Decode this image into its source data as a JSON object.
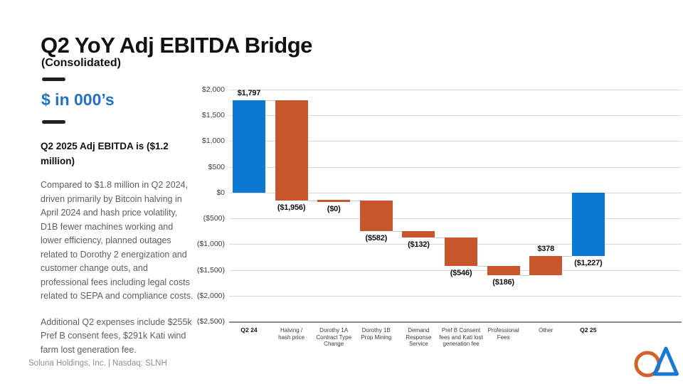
{
  "slide": {
    "title": "Q2 YoY Adj EBITDA Bridge",
    "subtitle": "(Consolidated)",
    "units_label": "$ in 000’s",
    "callout_heading": "Q2 2025 Adj EBITDA is ($1.2 million)",
    "body_paragraph_1": "Compared to $1.8 million in Q2 2024, driven primarily by Bitcoin halving in April 2024 and hash price volatility, D1B fewer machines working and lower efficiency, planned outages related to Dorothy 2 energization and customer change outs, and professional fees including legal costs related to SEPA and compliance costs.",
    "body_paragraph_2": "Additional Q2 expenses include $255k Pref B consent fees, $291k Kati wind farm lost generation fee.",
    "footer": "Soluna Holdings, Inc. |  Nasdaq: SLNH"
  },
  "colors": {
    "total_bar": "#0b79d1",
    "delta_bar": "#c7562a",
    "accent_text_blue": "#2272c3",
    "gridline": "#d9d9d9",
    "axis_line": "#8c8c8c",
    "connector": "#c9c9c9",
    "logo_orange": "#d2622a",
    "logo_blue": "#1779d6"
  },
  "chart_data": {
    "type": "bar",
    "subtype": "waterfall",
    "title": "",
    "xlabel": "",
    "ylabel": "",
    "units": "$ in 000's",
    "categories": [
      "Q2 24",
      "Halving  /\nhash price",
      "Dorothy 1A\nContract Type\nChange",
      "Dorothy 1B\nProp Mining",
      "Demand\nResponse\nService",
      "Pref B Consent\nfees and Kati lost\ngeneration fee",
      "Professional\nFees",
      "Other",
      "Q2 25"
    ],
    "series": [
      {
        "name": "Adj EBITDA bridge",
        "values": [
          1797,
          -1956,
          0,
          -582,
          -132,
          -546,
          -186,
          378,
          -1227
        ],
        "kinds": [
          "total",
          "delta",
          "delta",
          "delta",
          "delta",
          "delta",
          "delta",
          "delta",
          "total"
        ],
        "data_labels": [
          "$1,797",
          "($1,956)",
          "($0)",
          "($582)",
          "($132)",
          "($546)",
          "($186)",
          "$378",
          "($1,227)"
        ]
      }
    ],
    "running_totals": [
      1797,
      -159,
      -159,
      -741,
      -873,
      -1419,
      -1605,
      -1227,
      -1227
    ],
    "ylim": [
      -2500,
      2000
    ],
    "ytick_step": 500,
    "ytick_values": [
      2000,
      1500,
      1000,
      500,
      0,
      -500,
      -1000,
      -1500,
      -2000,
      -2500
    ],
    "ytick_labels": [
      "$2,000",
      "$1,500",
      "$1,000",
      "$500",
      "$0",
      "($500)",
      "($1,000)",
      "($1,500)",
      "($2,000)",
      "($2,500)"
    ],
    "grid": true,
    "legend": "none",
    "connector_lines": true
  }
}
